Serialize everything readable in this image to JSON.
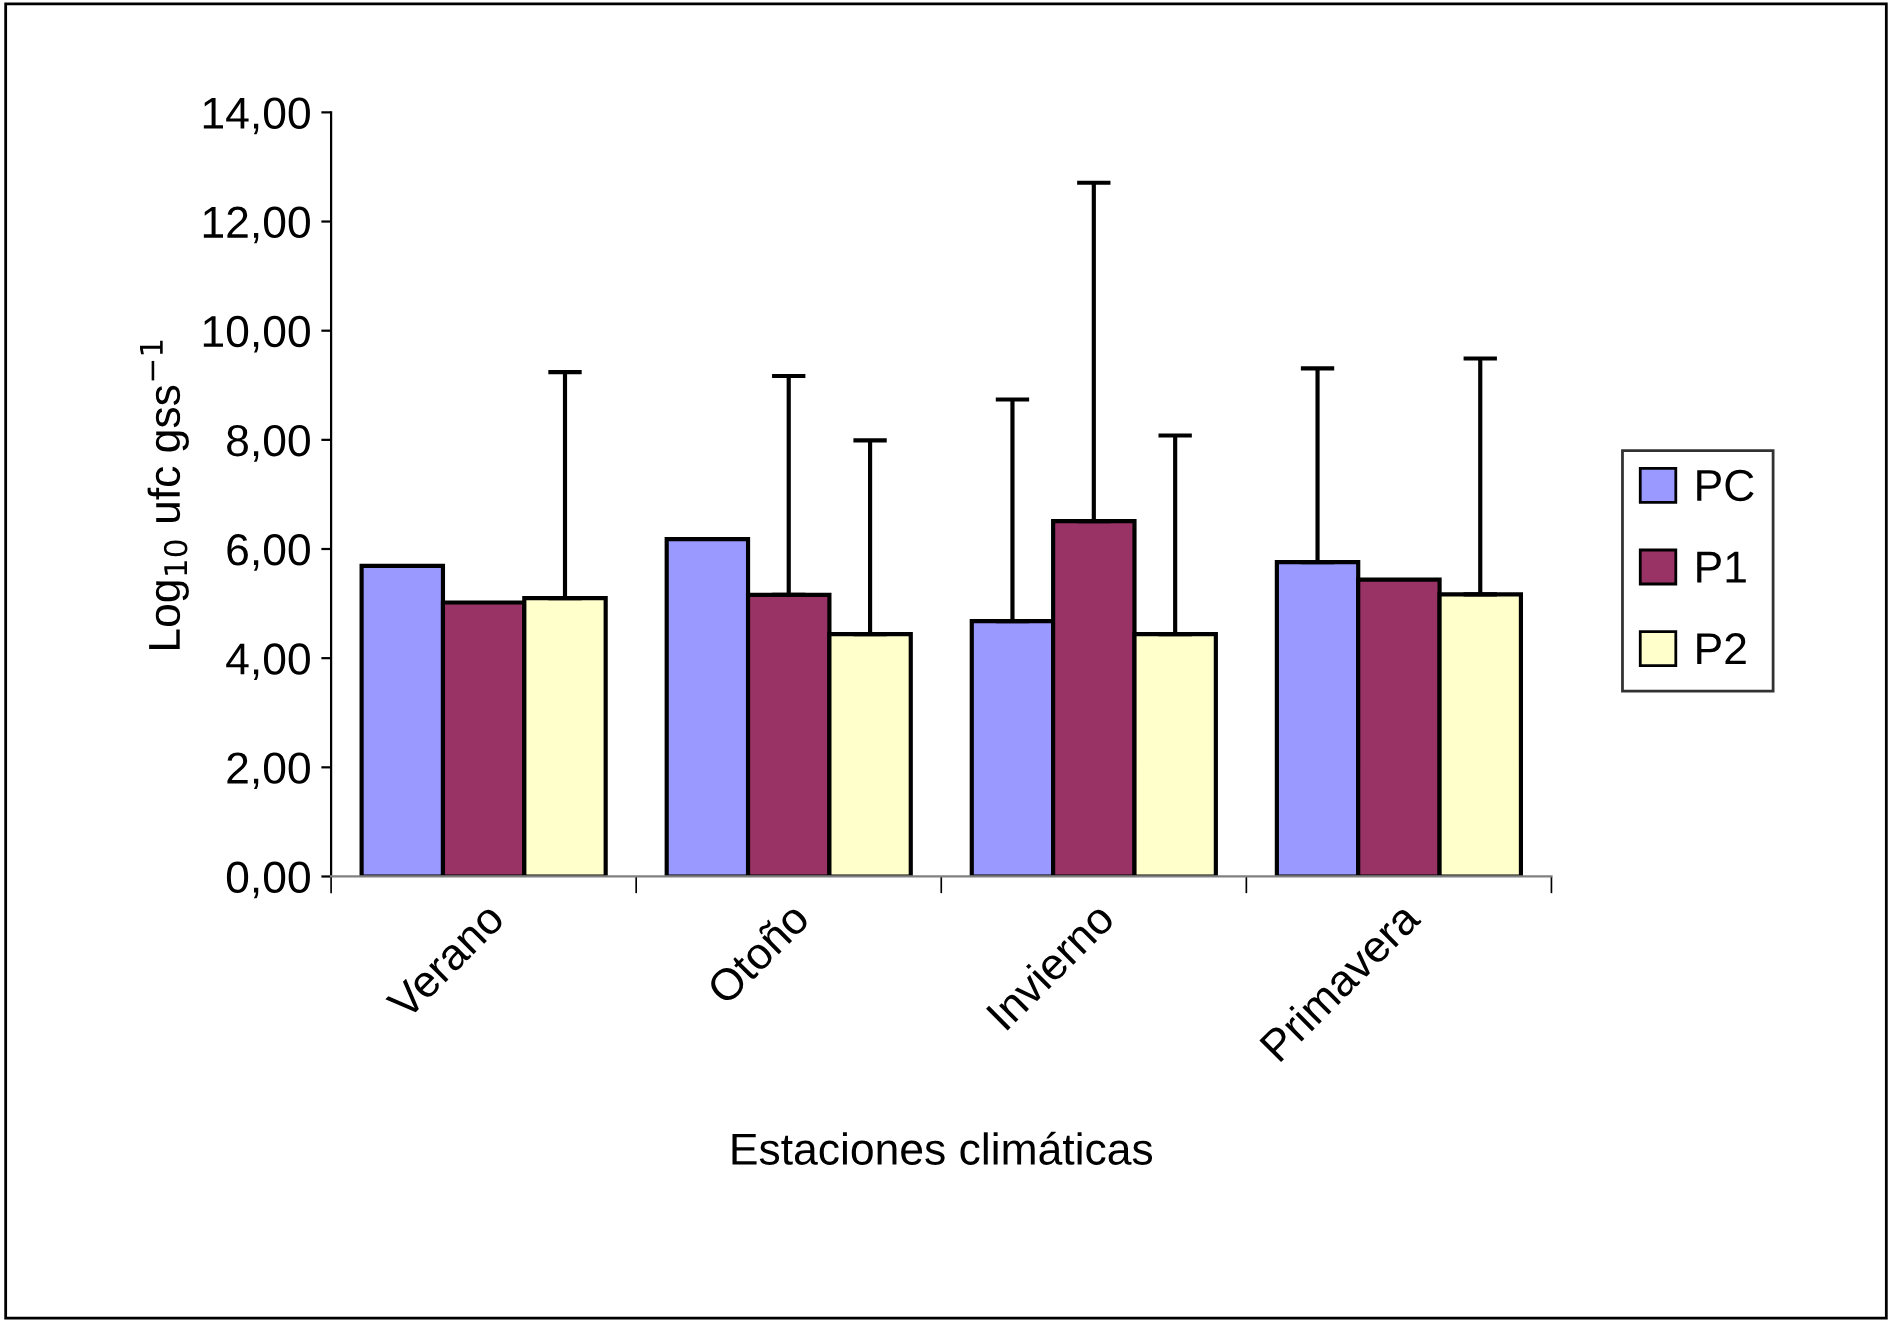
{
  "chart_data": {
    "type": "bar",
    "xlabel": "Estaciones climáticas",
    "ylabel": "Log$_{10}$ ufc gss$^{−1}$",
    "categories": [
      "Verano",
      "Otoño",
      "Invierno",
      "Primavera"
    ],
    "series": [
      {
        "name": "PC",
        "color": "#9999ff",
        "values": [
          5.69,
          6.18,
          4.68,
          5.76
        ],
        "errors": [
          null,
          null,
          [
            4.68,
            8.74
          ],
          [
            5.76,
            9.31
          ]
        ]
      },
      {
        "name": "P1",
        "color": "#993366",
        "values": [
          5.02,
          5.16,
          6.51,
          5.44
        ],
        "errors": [
          null,
          [
            5.16,
            9.17
          ],
          [
            6.51,
            12.71
          ],
          null
        ]
      },
      {
        "name": "P2",
        "color": "#ffffcc",
        "values": [
          5.1,
          4.44,
          4.44,
          5.17
        ],
        "errors": [
          [
            5.1,
            9.24
          ],
          [
            4.44,
            7.99
          ],
          [
            4.44,
            8.08
          ],
          [
            5.17,
            9.49
          ]
        ]
      }
    ],
    "ylim": [
      0,
      14
    ],
    "yticks": [
      {
        "value": 0,
        "label": "0,00"
      },
      {
        "value": 2,
        "label": "2,00"
      },
      {
        "value": 4,
        "label": "4,00"
      },
      {
        "value": 6,
        "label": "6,00"
      },
      {
        "value": 8,
        "label": "8,00"
      },
      {
        "value": 10,
        "label": "10,00"
      },
      {
        "value": 12,
        "label": "12,00"
      },
      {
        "value": 14,
        "label": "14,00"
      }
    ],
    "grid": false,
    "legend": "right"
  }
}
